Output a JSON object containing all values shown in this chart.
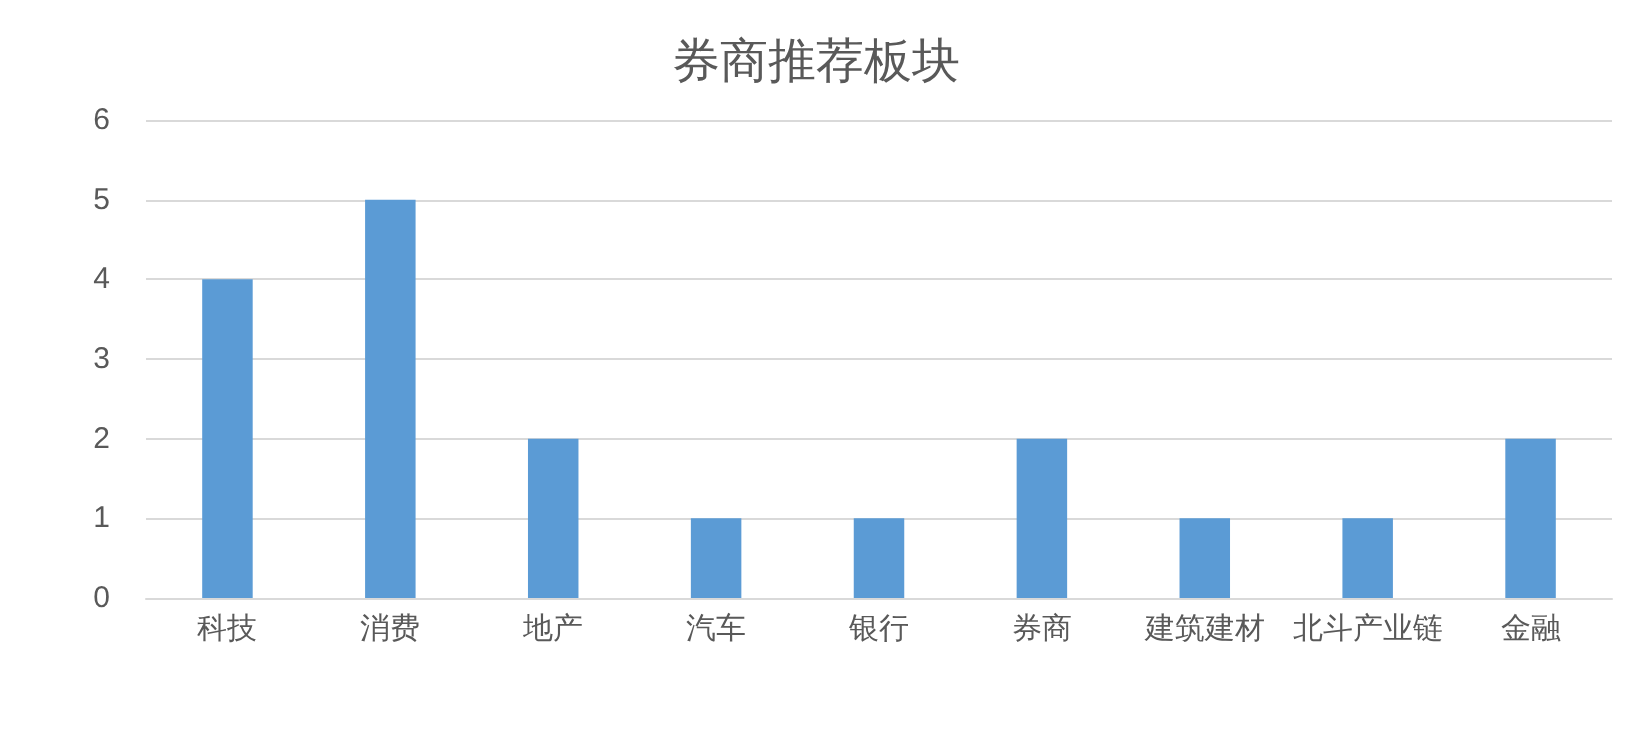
{
  "chart_data": {
    "type": "bar",
    "title": "券商推荐板块",
    "categories": [
      "科技",
      "消费",
      "地产",
      "汽车",
      "银行",
      "券商",
      "建筑建材",
      "北斗产业链",
      "金融"
    ],
    "values": [
      4,
      5,
      2,
      1,
      1,
      2,
      1,
      1,
      2
    ],
    "color": "#5b9bd5",
    "ylim": [
      0,
      6
    ],
    "yticks": [
      0,
      1,
      2,
      3,
      4,
      5,
      6
    ],
    "grid": "y"
  }
}
